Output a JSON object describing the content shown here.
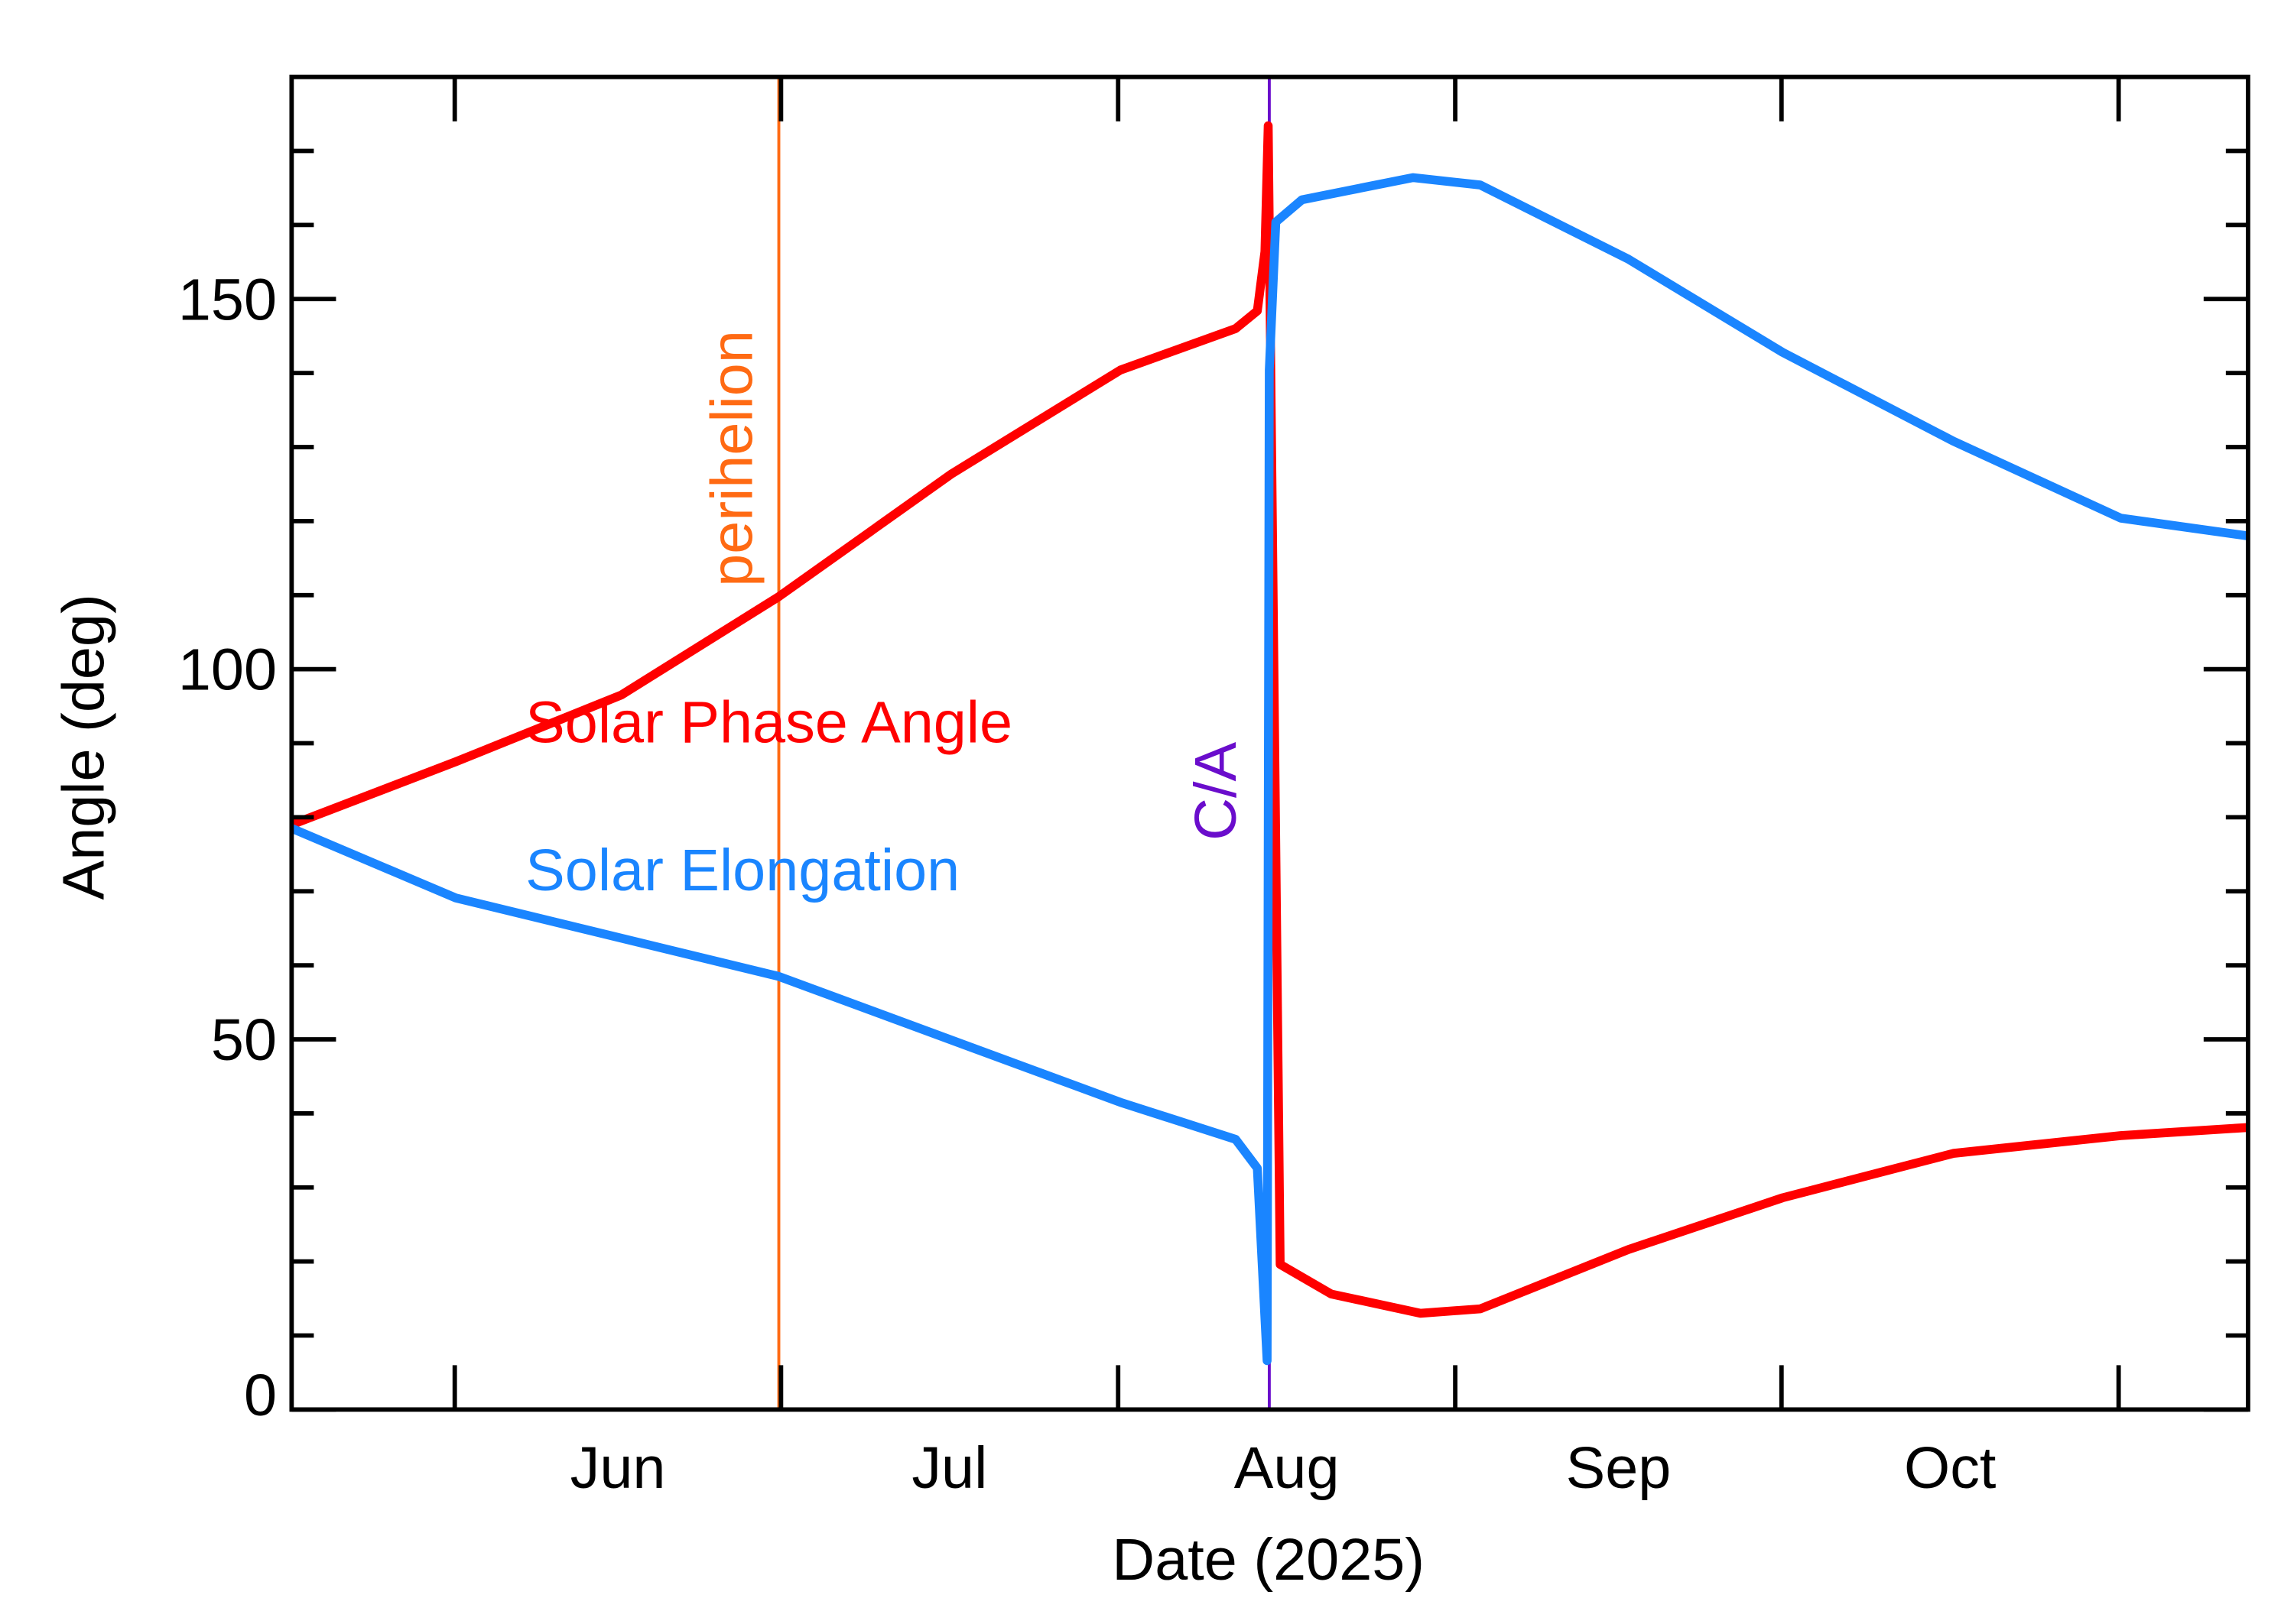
{
  "chart_data": {
    "type": "line",
    "xlabel": "Date (2025)",
    "ylabel": "Angle (deg)",
    "xlim": [
      137,
      316.9
    ],
    "xticks": [
      152,
      182,
      213,
      244,
      274,
      305
    ],
    "xtick_labels": [
      {
        "value": 167,
        "label": "Jun"
      },
      {
        "value": 197.5,
        "label": "Jul"
      },
      {
        "value": 228.5,
        "label": "Aug"
      },
      {
        "value": 259,
        "label": "Sep"
      },
      {
        "value": 289.5,
        "label": "Oct"
      }
    ],
    "ylim": [
      0,
      180
    ],
    "yticks": [
      0,
      50,
      100,
      150
    ],
    "yminorticks": [
      10,
      20,
      30,
      40,
      60,
      70,
      80,
      90,
      110,
      120,
      130,
      140,
      160,
      170
    ],
    "events": [
      {
        "label": "perihelion",
        "x": 181.8,
        "color": "#ff6a13"
      },
      {
        "label": "C/A",
        "x": 226.9,
        "color": "#6a0dcc"
      }
    ],
    "series": [
      {
        "name": "Solar Phase Angle",
        "color": "#ff0000",
        "x": [
          137,
          152.1,
          167.3,
          181.8,
          197.7,
          213.2,
          223.8,
          225.8,
          226.5,
          226.8,
          227.9,
          232.6,
          240.8,
          246.3,
          259.9,
          274.1,
          289.8,
          305.2,
          316.9
        ],
        "values": [
          79,
          87.5,
          96.5,
          109.8,
          126.4,
          140.4,
          146,
          148.4,
          156.4,
          173.4,
          19.6,
          15.6,
          13,
          13.6,
          21.6,
          28.6,
          34.6,
          37,
          38.1
        ]
      },
      {
        "name": "Solar Elongation",
        "color": "#1a85ff",
        "x": [
          137,
          152.1,
          181.8,
          213.2,
          223.8,
          225.8,
          226.7,
          226.9,
          227.5,
          229.9,
          240.1,
          246.3,
          259.9,
          274.1,
          289.8,
          305.2,
          316.9
        ],
        "values": [
          78.5,
          69.1,
          58.5,
          41.5,
          36.5,
          32.6,
          6.6,
          140.4,
          160.4,
          163.4,
          166.4,
          165.4,
          155.4,
          142.8,
          130.8,
          120.4,
          118
        ]
      }
    ]
  }
}
